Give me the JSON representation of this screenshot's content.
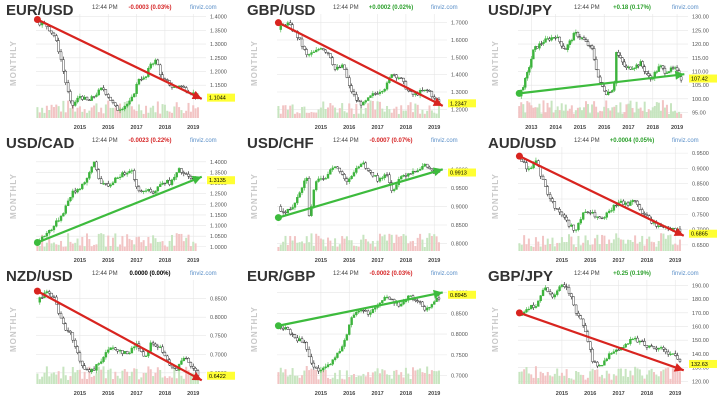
{
  "colors": {
    "up_candle": "#3cb33c",
    "down_candle": "#111111",
    "vol_up": "#c7e5c0",
    "vol_down": "#f2c4c4",
    "arrow_down": "#d8241f",
    "arrow_up": "#3dbb3d",
    "change_pos": "#2ca02c",
    "change_neg": "#d62728",
    "last_bg": "#ffff33",
    "grid": "#e6e6e6"
  },
  "common": {
    "time": "12:44 PM",
    "source": "finviz.com",
    "period_label": "MONTHLY"
  },
  "chart_data": [
    {
      "type": "line",
      "title": "EUR/USD",
      "change": "-0.0003 (0.03%)",
      "change_sign": "neg",
      "last": "1.1044",
      "y_ticks": [
        "1.4000",
        "1.3500",
        "1.3000",
        "1.2500",
        "1.2000",
        "1.1500"
      ],
      "x_ticks": [
        "2015",
        "2016",
        "2017",
        "2018",
        "2019"
      ],
      "ylim": [
        1.03,
        1.41
      ],
      "series": [
        {
          "x": [
            2014.0,
            2014.3,
            2014.6,
            2014.8,
            2015.0,
            2015.2,
            2015.5,
            2015.8,
            2016.0,
            2016.3,
            2016.5,
            2016.8,
            2017.0,
            2017.3,
            2017.6,
            2017.8,
            2018.0,
            2018.2,
            2018.4,
            2018.6,
            2018.8,
            2019.0,
            2019.3,
            2019.5,
            2019.7
          ],
          "values": [
            1.38,
            1.37,
            1.33,
            1.26,
            1.16,
            1.07,
            1.11,
            1.09,
            1.11,
            1.14,
            1.11,
            1.06,
            1.07,
            1.09,
            1.18,
            1.17,
            1.23,
            1.24,
            1.17,
            1.16,
            1.14,
            1.15,
            1.13,
            1.12,
            1.1
          ]
        }
      ],
      "trend": {
        "direction": "down",
        "from": [
          2014.0,
          1.39
        ],
        "to": [
          2019.8,
          1.1
        ]
      }
    },
    {
      "type": "line",
      "title": "GBP/USD",
      "change": "+0.0002 (0.02%)",
      "change_sign": "pos",
      "last": "1.2347",
      "y_ticks": [
        "1.7000",
        "1.6000",
        "1.5000",
        "1.4000",
        "1.3000",
        "1.2000"
      ],
      "x_ticks": [
        "2015",
        "2016",
        "2017",
        "2018",
        "2019"
      ],
      "ylim": [
        1.15,
        1.75
      ],
      "series": [
        {
          "x": [
            2014.0,
            2014.3,
            2014.6,
            2014.8,
            2015.0,
            2015.3,
            2015.5,
            2015.8,
            2016.0,
            2016.3,
            2016.5,
            2016.8,
            2017.0,
            2017.3,
            2017.6,
            2017.8,
            2018.0,
            2018.3,
            2018.6,
            2018.8,
            2019.0,
            2019.3,
            2019.5,
            2019.7
          ],
          "values": [
            1.66,
            1.7,
            1.64,
            1.58,
            1.51,
            1.53,
            1.56,
            1.52,
            1.43,
            1.45,
            1.33,
            1.24,
            1.23,
            1.28,
            1.31,
            1.33,
            1.41,
            1.38,
            1.3,
            1.28,
            1.3,
            1.31,
            1.26,
            1.24
          ]
        }
      ],
      "trend": {
        "direction": "down",
        "from": [
          2014.0,
          1.7
        ],
        "to": [
          2019.8,
          1.22
        ]
      }
    },
    {
      "type": "line",
      "title": "USD/JPY",
      "change": "+0.18 (0.17%)",
      "change_sign": "pos",
      "last": "107.42",
      "y_ticks": [
        "130.00",
        "125.00",
        "120.00",
        "115.00",
        "110.00",
        "105.00",
        "100.00",
        "95.00"
      ],
      "x_ticks": [
        "2013",
        "2014",
        "2015",
        "2016",
        "2017",
        "2018",
        "2019"
      ],
      "ylim": [
        93,
        131
      ],
      "series": [
        {
          "x": [
            2013.0,
            2013.3,
            2013.6,
            2014.0,
            2014.5,
            2014.9,
            2015.3,
            2015.6,
            2016.0,
            2016.3,
            2016.6,
            2016.9,
            2017.0,
            2017.4,
            2017.8,
            2018.0,
            2018.4,
            2018.8,
            2019.0,
            2019.4,
            2019.7
          ],
          "values": [
            101,
            108,
            118,
            121,
            123,
            118,
            124,
            122,
            118,
            106,
            102,
            104,
            117,
            111,
            112,
            113,
            107,
            112,
            110,
            111,
            107
          ]
        }
      ],
      "trend": {
        "direction": "up",
        "from": [
          2013.0,
          102
        ],
        "to": [
          2019.8,
          109
        ]
      }
    },
    {
      "type": "line",
      "title": "USD/CAD",
      "change": "-0.0023 (0.22%)",
      "change_sign": "neg",
      "last": "1.3135",
      "y_ticks": [
        "1.4000",
        "1.3500",
        "1.3000",
        "1.2500",
        "1.2000",
        "1.1500",
        "1.1000",
        "1.0500",
        "1.0000"
      ],
      "x_ticks": [
        "2015",
        "2016",
        "2017",
        "2018",
        "2019"
      ],
      "ylim": [
        0.98,
        1.47
      ],
      "series": [
        {
          "x": [
            2014.0,
            2014.3,
            2014.6,
            2014.9,
            2015.2,
            2015.5,
            2015.8,
            2016.0,
            2016.2,
            2016.5,
            2016.8,
            2017.0,
            2017.3,
            2017.6,
            2017.9,
            2018.1,
            2018.4,
            2018.7,
            2019.0,
            2019.3,
            2019.6
          ],
          "values": [
            1.02,
            1.06,
            1.1,
            1.16,
            1.25,
            1.28,
            1.33,
            1.4,
            1.31,
            1.28,
            1.33,
            1.34,
            1.37,
            1.25,
            1.28,
            1.25,
            1.31,
            1.3,
            1.36,
            1.33,
            1.31
          ]
        }
      ],
      "trend": {
        "direction": "up",
        "from": [
          2014.0,
          1.02
        ],
        "to": [
          2019.8,
          1.33
        ]
      }
    },
    {
      "type": "line",
      "title": "USD/CHF",
      "change": "-0.0007 (0.07%)",
      "change_sign": "neg",
      "last": "0.9913",
      "y_ticks": [
        "1.0000",
        "0.9500",
        "0.9000",
        "0.8500",
        "0.8000"
      ],
      "x_ticks": [
        "2015",
        "2016",
        "2017",
        "2018",
        "2019"
      ],
      "ylim": [
        0.78,
        1.06
      ],
      "series": [
        {
          "x": [
            2014.0,
            2014.2,
            2014.5,
            2014.8,
            2015.0,
            2015.1,
            2015.3,
            2015.6,
            2015.9,
            2016.1,
            2016.4,
            2016.7,
            2016.9,
            2017.2,
            2017.5,
            2017.8,
            2018.0,
            2018.3,
            2018.6,
            2018.9,
            2019.2,
            2019.5,
            2019.7
          ],
          "values": [
            0.9,
            0.88,
            0.9,
            0.95,
            0.98,
            0.86,
            0.97,
            0.97,
            1.01,
            1.0,
            0.97,
            0.99,
            1.02,
            1.0,
            0.97,
            0.99,
            0.94,
            0.98,
            0.99,
            1.0,
            1.01,
            0.99,
            0.99
          ]
        }
      ],
      "trend": {
        "direction": "up",
        "from": [
          2014.0,
          0.87
        ],
        "to": [
          2019.8,
          1.0
        ]
      }
    },
    {
      "type": "line",
      "title": "AUD/USD",
      "change": "+0.0004 (0.05%)",
      "change_sign": "pos",
      "last": "0.6865",
      "y_ticks": [
        "0.9500",
        "0.9000",
        "0.8500",
        "0.8000",
        "0.7500",
        "0.7000",
        "0.6500"
      ],
      "x_ticks": [
        "2015",
        "2016",
        "2017",
        "2018",
        "2019"
      ],
      "ylim": [
        0.63,
        0.97
      ],
      "series": [
        {
          "x": [
            2014.0,
            2014.3,
            2014.6,
            2014.9,
            2015.2,
            2015.5,
            2015.8,
            2016.0,
            2016.3,
            2016.6,
            2016.9,
            2017.2,
            2017.5,
            2017.8,
            2018.0,
            2018.3,
            2018.6,
            2018.9,
            2019.2,
            2019.5,
            2019.7
          ],
          "values": [
            0.93,
            0.9,
            0.92,
            0.84,
            0.78,
            0.75,
            0.71,
            0.7,
            0.76,
            0.75,
            0.73,
            0.76,
            0.79,
            0.78,
            0.8,
            0.76,
            0.73,
            0.71,
            0.71,
            0.7,
            0.69
          ]
        }
      ],
      "trend": {
        "direction": "down",
        "from": [
          2014.0,
          0.94
        ],
        "to": [
          2019.8,
          0.68
        ]
      }
    },
    {
      "type": "line",
      "title": "NZD/USD",
      "change": "0.0000 (0.00%)",
      "change_sign": "zero",
      "last": "0.6422",
      "y_ticks": [
        "0.8500",
        "0.8000",
        "0.7500",
        "0.7000",
        "0.6500"
      ],
      "x_ticks": [
        "2015",
        "2016",
        "2017",
        "2018",
        "2019"
      ],
      "ylim": [
        0.62,
        0.9
      ],
      "series": [
        {
          "x": [
            2014.0,
            2014.3,
            2014.6,
            2014.9,
            2015.2,
            2015.5,
            2015.8,
            2016.0,
            2016.3,
            2016.6,
            2016.9,
            2017.2,
            2017.5,
            2017.8,
            2018.0,
            2018.3,
            2018.6,
            2018.9,
            2019.2,
            2019.5,
            2019.7
          ],
          "values": [
            0.84,
            0.87,
            0.85,
            0.78,
            0.75,
            0.68,
            0.65,
            0.66,
            0.69,
            0.72,
            0.71,
            0.7,
            0.73,
            0.69,
            0.73,
            0.72,
            0.68,
            0.66,
            0.69,
            0.66,
            0.64
          ]
        }
      ],
      "trend": {
        "direction": "down",
        "from": [
          2014.0,
          0.87
        ],
        "to": [
          2019.8,
          0.63
        ]
      }
    },
    {
      "type": "line",
      "title": "EUR/GBP",
      "change": "-0.0002 (0.03%)",
      "change_sign": "neg",
      "last": "0.8945",
      "y_ticks": [
        "0.9000",
        "0.8500",
        "0.8000",
        "0.7500",
        "0.7000"
      ],
      "x_ticks": [
        "2015",
        "2016",
        "2017",
        "2018",
        "2019"
      ],
      "ylim": [
        0.68,
        0.93
      ],
      "series": [
        {
          "x": [
            2014.0,
            2014.3,
            2014.6,
            2014.9,
            2015.2,
            2015.5,
            2015.8,
            2016.0,
            2016.3,
            2016.6,
            2016.9,
            2017.2,
            2017.5,
            2017.8,
            2018.0,
            2018.3,
            2018.6,
            2018.9,
            2019.2,
            2019.5,
            2019.7
          ],
          "values": [
            0.82,
            0.81,
            0.79,
            0.78,
            0.72,
            0.71,
            0.73,
            0.74,
            0.78,
            0.84,
            0.86,
            0.85,
            0.87,
            0.89,
            0.88,
            0.87,
            0.89,
            0.88,
            0.86,
            0.88,
            0.89
          ]
        }
      ],
      "trend": {
        "direction": "up",
        "from": [
          2014.0,
          0.82
        ],
        "to": [
          2019.8,
          0.9
        ]
      }
    },
    {
      "type": "line",
      "title": "GBP/JPY",
      "change": "+0.25 (0.19%)",
      "change_sign": "pos",
      "last": "132.63",
      "y_ticks": [
        "190.00",
        "180.00",
        "170.00",
        "160.00",
        "150.00",
        "140.00",
        "130.00",
        "120.00"
      ],
      "x_ticks": [
        "2015",
        "2016",
        "2017",
        "2018",
        "2019"
      ],
      "ylim": [
        118,
        194
      ],
      "series": [
        {
          "x": [
            2014.0,
            2014.3,
            2014.6,
            2014.9,
            2015.2,
            2015.5,
            2015.8,
            2016.0,
            2016.3,
            2016.6,
            2016.9,
            2017.2,
            2017.5,
            2017.8,
            2018.0,
            2018.3,
            2018.6,
            2018.9,
            2019.2,
            2019.5,
            2019.7
          ],
          "values": [
            168,
            174,
            176,
            188,
            180,
            192,
            184,
            170,
            160,
            134,
            130,
            141,
            144,
            146,
            152,
            148,
            145,
            144,
            142,
            138,
            133
          ]
        }
      ],
      "trend": {
        "direction": "down",
        "from": [
          2014.0,
          170
        ],
        "to": [
          2019.8,
          128
        ]
      }
    }
  ]
}
